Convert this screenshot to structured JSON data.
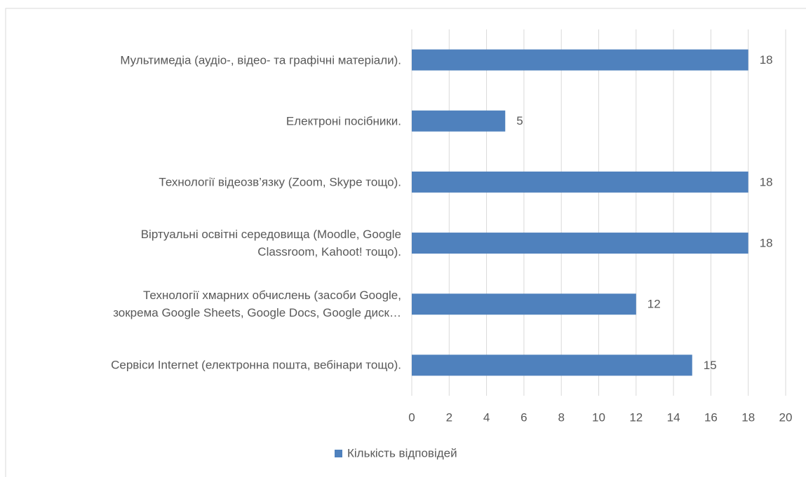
{
  "chart_data": {
    "type": "hbar",
    "categories": [
      "Мультимедіа (аудіо-, відео- та графічні матеріали).",
      "Електроні посібники.",
      "Технології відеозв’язку (Zoom, Skype тощо).",
      "Віртуальні освітні середовища (Moodle, Google\nClassroom, Kahoot! тощо).",
      "Технології хмарних обчислень (засоби Google,\nзокрема Google Sheets, Google Docs, Google диск…",
      "Сервіси Internet (електронна пошта, вебінари тощо)."
    ],
    "series": [
      {
        "name": "Кількість відповідей",
        "color": "#4f81bd",
        "values": [
          18,
          5,
          18,
          18,
          12,
          15
        ]
      }
    ],
    "xlim": [
      0,
      20
    ],
    "xticks": [
      0,
      2,
      4,
      6,
      8,
      10,
      12,
      14,
      16,
      18,
      20
    ],
    "grid": true,
    "legend": "bottom"
  }
}
